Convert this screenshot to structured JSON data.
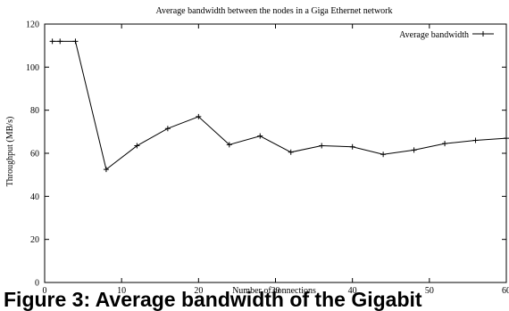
{
  "caption": "Figure 3: Average bandwidth of the Gigabit",
  "chart_data": {
    "type": "line",
    "title": "Average bandwidth between the nodes in a Giga Ethernet network",
    "xlabel": "Number of connections",
    "ylabel": "Throughput (MB/s)",
    "xlim": [
      0,
      60
    ],
    "ylim": [
      0,
      120
    ],
    "xticks": [
      0,
      10,
      20,
      30,
      40,
      50,
      60
    ],
    "yticks": [
      0,
      20,
      40,
      60,
      80,
      100,
      120
    ],
    "grid": false,
    "legend_position": "top-right",
    "series": [
      {
        "name": "Average bandwidth",
        "marker": "+",
        "color": "#000000",
        "x": [
          1,
          2,
          4,
          8,
          12,
          16,
          20,
          24,
          28,
          32,
          36,
          40,
          44,
          48,
          52,
          56,
          60
        ],
        "y": [
          112,
          112,
          112,
          52.5,
          63.5,
          71.5,
          77,
          64,
          68,
          60.5,
          63.5,
          63,
          59.5,
          61.5,
          64.5,
          66,
          67
        ]
      }
    ]
  }
}
